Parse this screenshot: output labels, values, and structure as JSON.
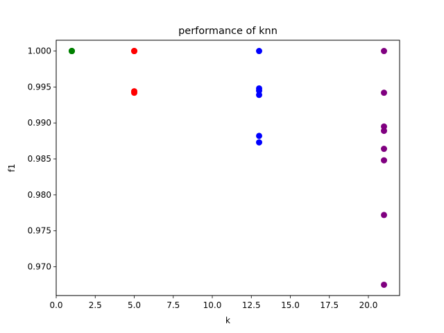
{
  "chart_data": {
    "type": "scatter",
    "title": "performance of knn",
    "xlabel": "k",
    "ylabel": "f1",
    "xlim": [
      0,
      22
    ],
    "ylim": [
      0.966,
      1.0015
    ],
    "xticks": [
      0.0,
      2.5,
      5.0,
      7.5,
      10.0,
      12.5,
      15.0,
      17.5,
      20.0
    ],
    "xtick_labels": [
      "0.0",
      "2.5",
      "5.0",
      "7.5",
      "10.0",
      "12.5",
      "15.0",
      "17.5",
      "20.0"
    ],
    "yticks": [
      0.97,
      0.975,
      0.98,
      0.985,
      0.99,
      0.995,
      1.0
    ],
    "ytick_labels": [
      "0.970",
      "0.975",
      "0.980",
      "0.985",
      "0.990",
      "0.995",
      "1.000"
    ],
    "grid": false,
    "series": [
      {
        "color": "#008000",
        "points": [
          [
            1,
            1.0
          ],
          [
            1,
            1.0
          ],
          [
            1,
            1.0
          ],
          [
            1,
            1.0
          ],
          [
            1,
            1.0
          ]
        ]
      },
      {
        "color": "#ff0000",
        "points": [
          [
            5,
            1.0
          ],
          [
            5,
            1.0
          ],
          [
            5,
            1.0
          ],
          [
            5,
            0.9944
          ],
          [
            5,
            0.9942
          ]
        ]
      },
      {
        "color": "#0000ff",
        "points": [
          [
            13,
            1.0
          ],
          [
            13,
            0.9948
          ],
          [
            13,
            0.9945
          ],
          [
            13,
            0.9939
          ],
          [
            13,
            0.9882
          ],
          [
            13,
            0.9873
          ]
        ]
      },
      {
        "color": "#800080",
        "points": [
          [
            21,
            1.0
          ],
          [
            21,
            0.9942
          ],
          [
            21,
            0.9895
          ],
          [
            21,
            0.9889
          ],
          [
            21,
            0.9864
          ],
          [
            21,
            0.9848
          ],
          [
            21,
            0.9772
          ],
          [
            21,
            0.9675
          ]
        ]
      }
    ]
  }
}
